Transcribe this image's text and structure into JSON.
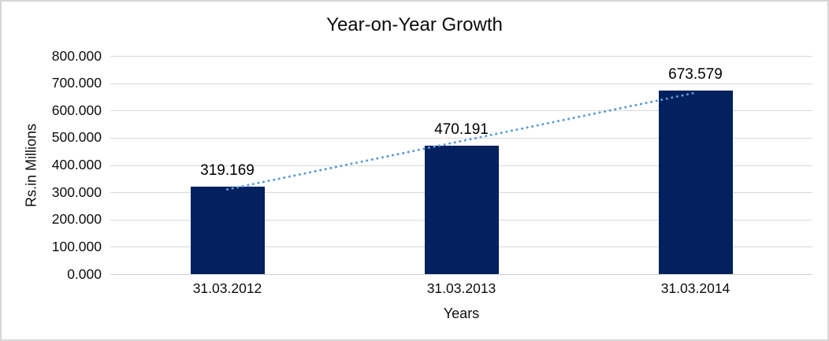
{
  "window": {
    "background": "#ffffff",
    "border_color": "#d6d6d6"
  },
  "chart": {
    "title": "Year-on-Year Growth",
    "x_axis_title": "Years",
    "y_axis_title": "Rs.in Millions"
  },
  "chart_data": {
    "type": "bar",
    "title": "Year-on-Year Growth",
    "xlabel": "Years",
    "ylabel": "Rs.in Millions",
    "categories": [
      "31.03.2012",
      "31.03.2013",
      "31.03.2014"
    ],
    "values": [
      319.169,
      470.191,
      673.579
    ],
    "data_labels": [
      "319.169",
      "470.191",
      "673.579"
    ],
    "ylim": [
      0,
      800
    ],
    "y_tick_step": 100,
    "y_tick_labels": [
      "0.000",
      "100.000",
      "200.000",
      "300.000",
      "400.000",
      "500.000",
      "600.000",
      "700.000",
      "800.000"
    ],
    "grid": true,
    "legend": "none",
    "bar_color": "#02215e",
    "gridline_color": "#d9d9d9",
    "axis_line_color": "#cfcfcf",
    "text_color": "#000000",
    "trendline": {
      "type": "linear",
      "style": "dotted",
      "color": "#5b9bd5"
    }
  }
}
